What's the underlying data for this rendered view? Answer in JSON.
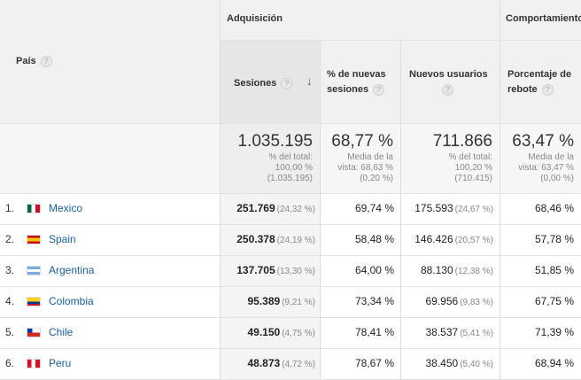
{
  "header": {
    "group_acquisition": "Adquisición",
    "group_behavior": "Comportamiento",
    "col_country": "País",
    "col_sessions": "Sesiones",
    "col_new_sessions_pct": "% de nuevas sesiones",
    "col_new_users": "Nuevos usuarios",
    "col_bounce_rate": "Porcentaje de rebote",
    "help_glyph": "?",
    "sort_glyph": "↓"
  },
  "totals": {
    "sessions": {
      "value": "1.035.195",
      "line1": "% del total:",
      "line2": "100,00 %",
      "line3": "(1.035.195)"
    },
    "new_sessions_pct": {
      "value": "68,77 %",
      "line1": "Media de la",
      "line2": "vista: 68,63 %",
      "line3": "(0,20 %)"
    },
    "new_users": {
      "value": "711.866",
      "line1": "% del total:",
      "line2": "100,20 %",
      "line3": "(710.415)"
    },
    "bounce_rate": {
      "value": "63,47 %",
      "line1": "Media de la",
      "line2": "vista: 63,47 %",
      "line3": "(0,00 %)"
    }
  },
  "rows": [
    {
      "num": "1.",
      "country": "Mexico",
      "flag": "mexico-flag-icon",
      "sessions": "251.769",
      "sessions_pct": "(24,32 %)",
      "new_sessions_pct": "69,74 %",
      "new_users": "175.593",
      "new_users_pct": "(24,67 %)",
      "bounce_rate": "68,46 %"
    },
    {
      "num": "2.",
      "country": "Spain",
      "flag": "spain-flag-icon",
      "sessions": "250.378",
      "sessions_pct": "(24,19 %)",
      "new_sessions_pct": "58,48 %",
      "new_users": "146.426",
      "new_users_pct": "(20,57 %)",
      "bounce_rate": "57,78 %"
    },
    {
      "num": "3.",
      "country": "Argentina",
      "flag": "argentina-flag-icon",
      "sessions": "137.705",
      "sessions_pct": "(13,30 %)",
      "new_sessions_pct": "64,00 %",
      "new_users": "88.130",
      "new_users_pct": "(12,38 %)",
      "bounce_rate": "51,85 %"
    },
    {
      "num": "4.",
      "country": "Colombia",
      "flag": "colombia-flag-icon",
      "sessions": "95.389",
      "sessions_pct": "(9,21 %)",
      "new_sessions_pct": "73,34 %",
      "new_users": "69.956",
      "new_users_pct": "(9,83 %)",
      "bounce_rate": "67,75 %"
    },
    {
      "num": "5.",
      "country": "Chile",
      "flag": "chile-flag-icon",
      "sessions": "49.150",
      "sessions_pct": "(4,75 %)",
      "new_sessions_pct": "78,41 %",
      "new_users": "38.537",
      "new_users_pct": "(5,41 %)",
      "bounce_rate": "71,39 %"
    },
    {
      "num": "6.",
      "country": "Peru",
      "flag": "peru-flag-icon",
      "sessions": "48.873",
      "sessions_pct": "(4,72 %)",
      "new_sessions_pct": "78,67 %",
      "new_users": "38.450",
      "new_users_pct": "(5,40 %)",
      "bounce_rate": "68,94 %"
    }
  ]
}
